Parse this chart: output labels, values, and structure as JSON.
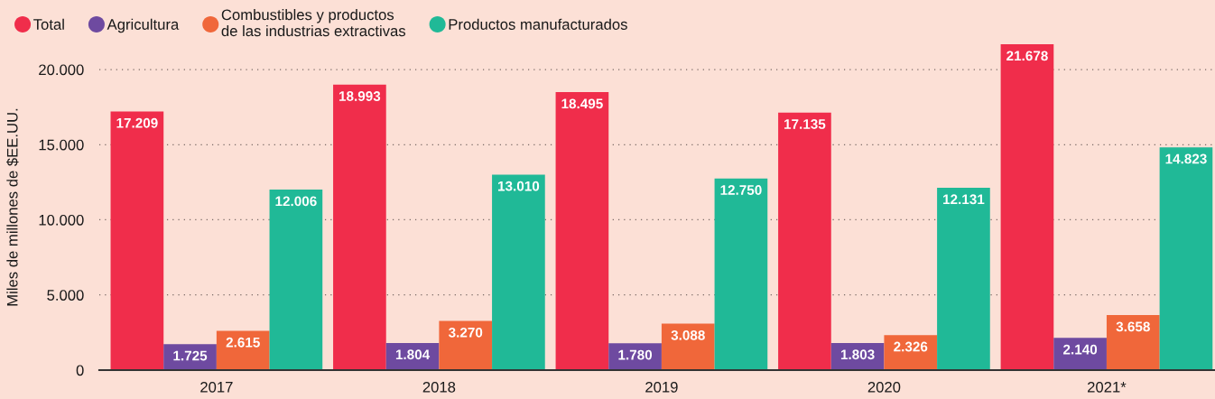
{
  "chart_data": {
    "type": "bar",
    "ylabel": "Miles de millones de $EE.UU.",
    "categories": [
      "2017",
      "2018",
      "2019",
      "2020",
      "2021*"
    ],
    "series": [
      {
        "name": "Total",
        "color": "#f02d4b",
        "values": [
          17209,
          18993,
          18495,
          17135,
          21678
        ],
        "value_labels": [
          "17.209",
          "18.993",
          "18.495",
          "17.135",
          "21.678"
        ]
      },
      {
        "name": "Agricultura",
        "color": "#6e4aa0",
        "values": [
          1725,
          1804,
          1780,
          1803,
          2140
        ],
        "value_labels": [
          "1.725",
          "1.804",
          "1.780",
          "1.803",
          "2.140"
        ]
      },
      {
        "name": "Combustibles y productos\nde las industrias extractivas",
        "color": "#f0673a",
        "values": [
          2615,
          3270,
          3088,
          2326,
          3658
        ],
        "value_labels": [
          "2.615",
          "3.270",
          "3.088",
          "2.326",
          "3.658"
        ]
      },
      {
        "name": "Productos manufacturados",
        "color": "#20b997",
        "values": [
          12006,
          13010,
          12750,
          12131,
          14823
        ],
        "value_labels": [
          "12.006",
          "13.010",
          "12.750",
          "12.131",
          "14.823"
        ]
      }
    ],
    "ylim": [
      0,
      21678
    ],
    "yticks": [
      0,
      {
        "value": 5000,
        "label": "5.000"
      },
      {
        "value": 10000,
        "label": "10.000"
      },
      {
        "value": 15000,
        "label": "15.000"
      },
      {
        "value": 20000,
        "label": "20.000"
      }
    ],
    "grid": "y",
    "legend": "top left"
  }
}
